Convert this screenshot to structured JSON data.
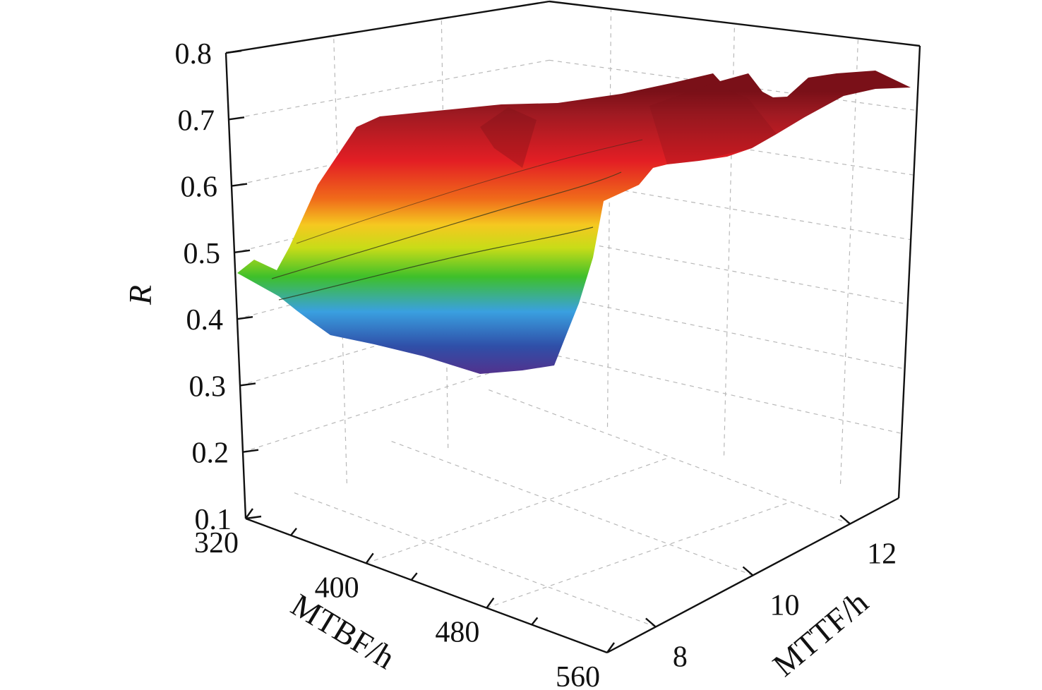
{
  "chart_data": {
    "type": "surface",
    "title": "",
    "xlabel": "MTBF/h",
    "ylabel": "MTTF/h",
    "zlabel": "R",
    "x_ticks": [
      "320",
      "400",
      "480",
      "560"
    ],
    "y_ticks": [
      "8",
      "10",
      "12"
    ],
    "z_ticks": [
      "0.1",
      "0.2",
      "0.3",
      "0.4",
      "0.5",
      "0.6",
      "0.7",
      "0.8"
    ],
    "xlim": [
      320,
      560
    ],
    "ylim": [
      7,
      13
    ],
    "zlim": [
      0.1,
      0.8
    ],
    "grid": true,
    "colormap": [
      "#5b2a86",
      "#2f4fa8",
      "#3aa0e0",
      "#3ec02a",
      "#c8dc18",
      "#f5c820",
      "#f06a1a",
      "#e31e24",
      "#a01a22"
    ],
    "surface_edges": {
      "mtbf_320_row": {
        "mttf": [
          7,
          7.5,
          8,
          8.5,
          9,
          9.5,
          10,
          10.5,
          11,
          11.5,
          12,
          12.5,
          13
        ],
        "R": [
          0.49,
          0.5,
          0.5,
          0.56,
          0.6,
          0.66,
          0.73,
          0.73,
          0.74,
          0.75,
          0.77,
          0.77,
          0.78
        ]
      },
      "mttf_7_row": {
        "mtbf": [
          320,
          360,
          400,
          440,
          480,
          520,
          560
        ],
        "R": [
          0.49,
          0.44,
          0.41,
          0.38,
          0.36,
          0.35,
          0.37
        ]
      }
    }
  }
}
